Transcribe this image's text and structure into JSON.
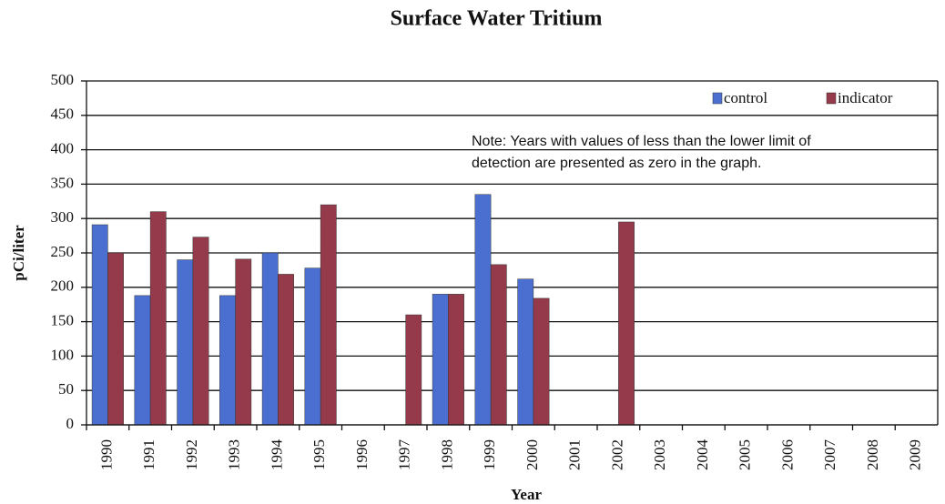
{
  "chart_data": {
    "type": "bar",
    "title": "Surface Water Tritium",
    "x_label": "Year",
    "y_label": "pCi/liter",
    "note": [
      "Note: Years with values of less than the lower limit of",
      "detection are presented as zero in the graph."
    ],
    "categories": [
      "1990",
      "1991",
      "1992",
      "1993",
      "1994",
      "1995",
      "1996",
      "1997",
      "1998",
      "1999",
      "2000",
      "2001",
      "2002",
      "2003",
      "2004",
      "2005",
      "2006",
      "2007",
      "2008",
      "2009"
    ],
    "series": [
      {
        "name": "control",
        "color": "#4a6fd0",
        "values": [
          291,
          188,
          240,
          188,
          250,
          228,
          0,
          0,
          190,
          335,
          212,
          0,
          0,
          0,
          0,
          0,
          0,
          0,
          0,
          0
        ]
      },
      {
        "name": "indicator",
        "color": "#943a4a",
        "values": [
          250,
          310,
          273,
          241,
          219,
          320,
          0,
          160,
          190,
          233,
          184,
          0,
          295,
          0,
          0,
          0,
          0,
          0,
          0,
          0
        ]
      }
    ],
    "ylim": [
      0,
      500
    ],
    "yticks": [
      0,
      50,
      100,
      150,
      200,
      250,
      300,
      350,
      400,
      450,
      500
    ],
    "grid": true,
    "legend": "top-right"
  }
}
